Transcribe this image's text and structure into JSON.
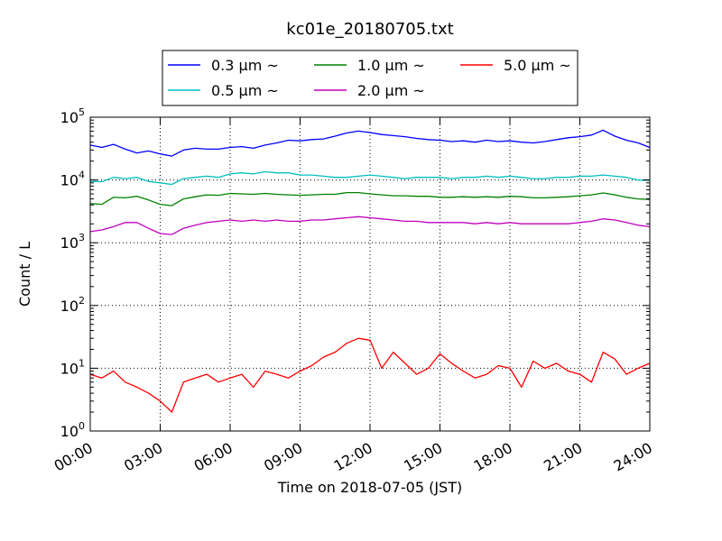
{
  "chart_data": {
    "type": "line",
    "title": "kc01e_20180705.txt",
    "xlabel": "Time on 2018-07-05 (JST)",
    "ylabel": "Count / L",
    "yscale": "log",
    "ylim": [
      1,
      100000
    ],
    "xlim": [
      "2018-07-05 00:00",
      "2018-07-06 00:00"
    ],
    "grid": true,
    "legend_position": "top-center",
    "x_tick_labels": [
      "00:00",
      "03:00",
      "06:00",
      "09:00",
      "12:00",
      "15:00",
      "18:00",
      "21:00",
      "24:00"
    ],
    "y_tick_labels": [
      {
        "base": "10",
        "exp": "0"
      },
      {
        "base": "10",
        "exp": "1"
      },
      {
        "base": "10",
        "exp": "2"
      },
      {
        "base": "10",
        "exp": "3"
      },
      {
        "base": "10",
        "exp": "4"
      },
      {
        "base": "10",
        "exp": "5"
      }
    ],
    "x_time": [
      "00:00",
      "00:30",
      "01:00",
      "01:30",
      "02:00",
      "02:30",
      "03:00",
      "03:30",
      "04:00",
      "04:30",
      "05:00",
      "05:30",
      "06:00",
      "06:30",
      "07:00",
      "07:30",
      "08:00",
      "08:30",
      "09:00",
      "09:30",
      "10:00",
      "10:30",
      "11:00",
      "11:30",
      "12:00",
      "12:30",
      "13:00",
      "13:30",
      "14:00",
      "14:30",
      "15:00",
      "15:30",
      "16:00",
      "16:30",
      "17:00",
      "17:30",
      "18:00",
      "18:30",
      "19:00",
      "19:30",
      "20:00",
      "20:30",
      "21:00",
      "21:30",
      "22:00",
      "22:30",
      "23:00",
      "23:30",
      "24:00"
    ],
    "series": [
      {
        "name": "0.3 μm ~",
        "color": "#0000ff",
        "values": [
          36000,
          33000,
          37000,
          31000,
          27000,
          29000,
          26000,
          24000,
          30000,
          32000,
          31000,
          31000,
          33000,
          34000,
          32000,
          36000,
          39000,
          43000,
          42000,
          44000,
          45000,
          50000,
          56000,
          60000,
          57000,
          53000,
          51000,
          49000,
          46000,
          44000,
          43000,
          41000,
          42000,
          40000,
          43000,
          41000,
          42000,
          40000,
          39000,
          41000,
          44000,
          47000,
          49000,
          52000,
          62000,
          50000,
          43000,
          39000,
          33000
        ]
      },
      {
        "name": "0.5 μm ~",
        "color": "#00bfbf",
        "values": [
          9500,
          9400,
          11000,
          10500,
          11000,
          9500,
          9000,
          8500,
          10500,
          11000,
          11500,
          11000,
          12500,
          13000,
          12500,
          13500,
          13000,
          13000,
          12000,
          12000,
          11500,
          11000,
          11000,
          11500,
          12000,
          11500,
          11000,
          10500,
          11000,
          11000,
          11000,
          10500,
          11000,
          11000,
          11500,
          11000,
          11500,
          11000,
          10500,
          10500,
          11000,
          11000,
          11500,
          11500,
          12000,
          11500,
          11000,
          10000,
          9800
        ]
      },
      {
        "name": "1.0 μm ~",
        "color": "#008000",
        "values": [
          4200,
          4100,
          5300,
          5200,
          5500,
          4800,
          4100,
          3900,
          5000,
          5400,
          5800,
          5700,
          6100,
          6000,
          5900,
          6100,
          5900,
          5800,
          5700,
          5800,
          5900,
          5900,
          6300,
          6300,
          6000,
          5800,
          5600,
          5600,
          5500,
          5500,
          5300,
          5300,
          5400,
          5300,
          5400,
          5300,
          5500,
          5400,
          5200,
          5200,
          5300,
          5400,
          5600,
          5800,
          6200,
          5800,
          5300,
          5000,
          4900
        ]
      },
      {
        "name": "2.0 μm ~",
        "color": "#bf00bf",
        "values": [
          1500,
          1600,
          1800,
          2100,
          2100,
          1700,
          1400,
          1350,
          1700,
          1900,
          2100,
          2200,
          2300,
          2200,
          2300,
          2200,
          2300,
          2200,
          2200,
          2300,
          2300,
          2400,
          2500,
          2600,
          2500,
          2400,
          2300,
          2200,
          2200,
          2100,
          2100,
          2100,
          2100,
          2000,
          2100,
          2000,
          2100,
          2000,
          2000,
          2000,
          2000,
          2000,
          2100,
          2200,
          2400,
          2300,
          2100,
          1900,
          1800
        ]
      },
      {
        "name": "5.0 μm ~",
        "color": "#ff0000",
        "values": [
          8,
          7,
          9,
          6,
          5,
          4,
          3,
          2,
          6,
          7,
          8,
          6,
          7,
          8,
          5,
          9,
          8,
          7,
          9,
          11,
          15,
          18,
          25,
          30,
          28,
          10,
          18,
          12,
          8,
          10,
          17,
          12,
          9,
          7,
          8,
          11,
          10,
          5,
          13,
          10,
          12,
          9,
          8,
          6,
          18,
          14,
          8,
          10,
          12
        ]
      }
    ]
  }
}
